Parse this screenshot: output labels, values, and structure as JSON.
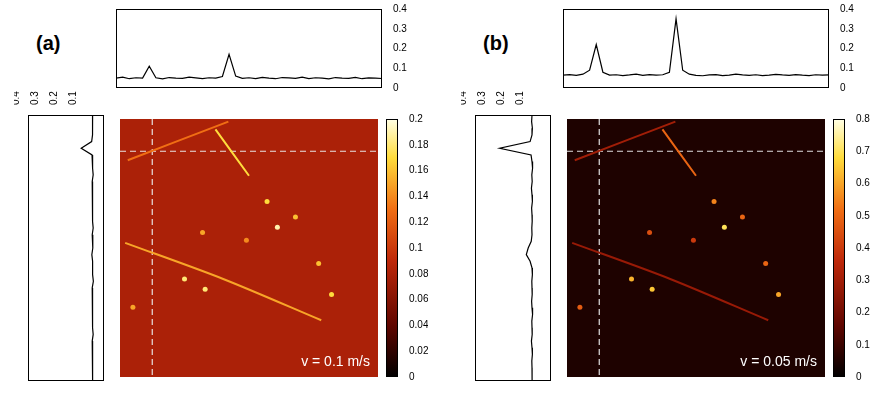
{
  "chart_data": [
    {
      "type": "heatmap",
      "label": "(a)",
      "annotation": "v = 0.1 m/s",
      "image": {
        "xlim": [
          0,
          100
        ],
        "ylim": [
          0,
          100
        ],
        "tick_labels": false,
        "background": 0.08,
        "crosshair": {
          "x": 12.5,
          "y": 12.5
        },
        "lines": [
          {
            "x": [
              3,
              42
            ],
            "y": [
              16,
              1
            ],
            "value": 0.13
          },
          {
            "x": [
              37,
              50
            ],
            "y": [
              4,
              22
            ],
            "value": 0.17
          },
          {
            "x": [
              2,
              40,
              78
            ],
            "y": [
              48,
              62,
              78
            ],
            "value": 0.15
          }
        ],
        "spots": {
          "x": [
            57,
            61,
            77,
            32,
            33,
            82,
            49,
            68,
            25,
            5
          ],
          "y": [
            32,
            42,
            56,
            44,
            66,
            68,
            47,
            38,
            62,
            73
          ],
          "values": [
            0.17,
            0.19,
            0.16,
            0.15,
            0.18,
            0.17,
            0.14,
            0.16,
            0.18,
            0.15
          ]
        }
      },
      "colorbar": {
        "range": [
          0,
          0.2
        ],
        "ticks": [
          0,
          0.02,
          0.04,
          0.06,
          0.08,
          0.1,
          0.12,
          0.14,
          0.16,
          0.18,
          0.2
        ]
      },
      "top_profile": {
        "type": "line",
        "x": [
          0,
          2.5,
          5,
          7.5,
          10,
          12.5,
          15,
          17.5,
          20,
          22.5,
          25,
          27.5,
          30,
          32.5,
          35,
          37.5,
          40,
          42.5,
          45,
          47.5,
          50,
          52.5,
          55,
          57.5,
          60,
          62.5,
          65,
          67.5,
          70,
          72.5,
          75,
          77.5,
          80,
          82.5,
          85,
          87.5,
          90,
          92.5,
          95,
          97.5,
          100
        ],
        "values": [
          0.05,
          0.055,
          0.047,
          0.052,
          0.05,
          0.11,
          0.052,
          0.046,
          0.053,
          0.05,
          0.049,
          0.055,
          0.051,
          0.047,
          0.052,
          0.05,
          0.058,
          0.17,
          0.06,
          0.049,
          0.052,
          0.048,
          0.054,
          0.05,
          0.047,
          0.053,
          0.051,
          0.049,
          0.055,
          0.048,
          0.052,
          0.05,
          0.046,
          0.053,
          0.05,
          0.049,
          0.054,
          0.047,
          0.051,
          0.05,
          0.048
        ],
        "xlim": [
          0,
          100
        ],
        "ylim": [
          0,
          0.4
        ],
        "yticks": [
          0,
          0.1,
          0.2,
          0.3,
          0.4
        ],
        "tick_labels": "y"
      },
      "left_profile": {
        "type": "line",
        "y": [
          0,
          2.5,
          5,
          7.5,
          10,
          12.5,
          15,
          17.5,
          20,
          22.5,
          25,
          27.5,
          30,
          32.5,
          35,
          37.5,
          40,
          42.5,
          45,
          47.5,
          50,
          52.5,
          55,
          57.5,
          60,
          62.5,
          65,
          67.5,
          70,
          72.5,
          75,
          77.5,
          80,
          82.5,
          85,
          87.5,
          90,
          92.5,
          95,
          97.5,
          100
        ],
        "values": [
          0.06,
          0.062,
          0.058,
          0.061,
          0.065,
          0.12,
          0.063,
          0.059,
          0.061,
          0.057,
          0.062,
          0.06,
          0.058,
          0.063,
          0.06,
          0.059,
          0.061,
          0.057,
          0.062,
          0.06,
          0.058,
          0.064,
          0.06,
          0.059,
          0.061,
          0.056,
          0.062,
          0.06,
          0.058,
          0.063,
          0.059,
          0.061,
          0.06,
          0.057,
          0.062,
          0.059,
          0.061,
          0.06,
          0.058,
          0.062,
          0.06
        ],
        "ylim": [
          0,
          100
        ],
        "xlim": [
          0.4,
          0
        ],
        "xticks": [
          0.4,
          0.3,
          0.2,
          0.1
        ],
        "tick_labels": "x"
      }
    },
    {
      "type": "heatmap",
      "label": "(b)",
      "annotation": "v = 0.05 m/s",
      "image": {
        "xlim": [
          0,
          100
        ],
        "ylim": [
          0,
          100
        ],
        "tick_labels": false,
        "background": 0.05,
        "crosshair": {
          "x": 12.5,
          "y": 12.5
        },
        "lines": [
          {
            "x": [
              3,
              42
            ],
            "y": [
              16,
              1
            ],
            "value": 0.3
          },
          {
            "x": [
              37,
              50
            ],
            "y": [
              4,
              22
            ],
            "value": 0.5
          },
          {
            "x": [
              2,
              40,
              78
            ],
            "y": [
              48,
              62,
              78
            ],
            "value": 0.28
          }
        ],
        "spots": {
          "x": [
            57,
            61,
            77,
            32,
            33,
            82,
            49,
            68,
            25,
            5
          ],
          "y": [
            32,
            42,
            56,
            44,
            66,
            68,
            47,
            38,
            62,
            73
          ],
          "values": [
            0.55,
            0.7,
            0.5,
            0.45,
            0.65,
            0.6,
            0.4,
            0.5,
            0.62,
            0.48
          ]
        }
      },
      "colorbar": {
        "range": [
          0,
          0.8
        ],
        "ticks": [
          0,
          0.1,
          0.2,
          0.3,
          0.4,
          0.5,
          0.6,
          0.7,
          0.8
        ]
      },
      "top_profile": {
        "type": "line",
        "x": [
          0,
          2.5,
          5,
          7.5,
          10,
          12.5,
          15,
          17.5,
          20,
          22.5,
          25,
          27.5,
          30,
          32.5,
          35,
          37.5,
          40,
          42.5,
          45,
          47.5,
          50,
          52.5,
          55,
          57.5,
          60,
          62.5,
          65,
          67.5,
          70,
          72.5,
          75,
          77.5,
          80,
          82.5,
          85,
          87.5,
          90,
          92.5,
          95,
          97.5,
          100
        ],
        "values": [
          0.065,
          0.068,
          0.064,
          0.07,
          0.09,
          0.22,
          0.08,
          0.065,
          0.067,
          0.063,
          0.066,
          0.07,
          0.064,
          0.068,
          0.065,
          0.067,
          0.08,
          0.35,
          0.09,
          0.07,
          0.064,
          0.062,
          0.066,
          0.068,
          0.063,
          0.065,
          0.07,
          0.066,
          0.064,
          0.067,
          0.063,
          0.065,
          0.069,
          0.066,
          0.064,
          0.068,
          0.065,
          0.063,
          0.067,
          0.065,
          0.066
        ],
        "xlim": [
          0,
          100
        ],
        "ylim": [
          0,
          0.4
        ],
        "yticks": [
          0,
          0.1,
          0.2,
          0.3,
          0.4
        ],
        "tick_labels": "y"
      },
      "left_profile": {
        "type": "line",
        "y": [
          0,
          2.5,
          5,
          7.5,
          10,
          12.5,
          15,
          17.5,
          20,
          22.5,
          25,
          27.5,
          30,
          32.5,
          35,
          37.5,
          40,
          42.5,
          45,
          47.5,
          50,
          52.5,
          55,
          57.5,
          60,
          62.5,
          65,
          67.5,
          70,
          72.5,
          75,
          77.5,
          80,
          82.5,
          85,
          87.5,
          90,
          92.5,
          95,
          97.5,
          100
        ],
        "values": [
          0.1,
          0.102,
          0.098,
          0.1,
          0.11,
          0.27,
          0.105,
          0.1,
          0.097,
          0.101,
          0.099,
          0.103,
          0.1,
          0.098,
          0.102,
          0.1,
          0.099,
          0.101,
          0.1,
          0.104,
          0.12,
          0.13,
          0.11,
          0.1,
          0.098,
          0.101,
          0.1,
          0.099,
          0.102,
          0.1,
          0.097,
          0.101,
          0.1,
          0.099,
          0.103,
          0.1,
          0.098,
          0.101,
          0.1,
          0.099,
          0.1
        ],
        "ylim": [
          0,
          100
        ],
        "xlim": [
          0.4,
          0
        ],
        "xticks": [
          0.4,
          0.3,
          0.2,
          0.1
        ],
        "tick_labels": "x"
      }
    }
  ]
}
